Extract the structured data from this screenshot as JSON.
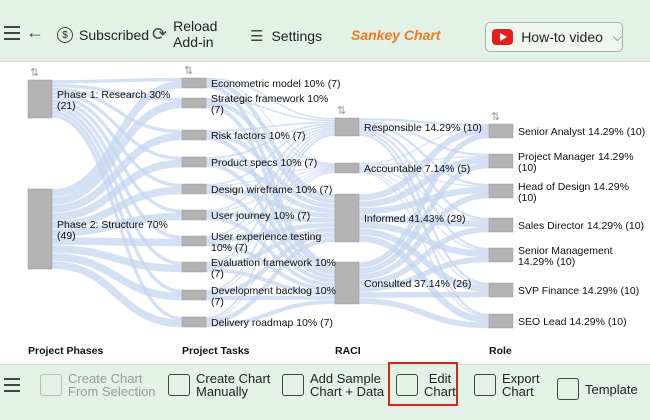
{
  "toolbar": {
    "subscribed_label": "Subscribed",
    "reload_label_1": "Reload",
    "reload_label_2": "Add-in",
    "settings_label": "Settings",
    "chart_title": "Sankey Chart",
    "howto_label": "How-to video"
  },
  "bottom_toolbar": {
    "create_selection_1": "Create Chart",
    "create_selection_2": "From Selection",
    "create_manual_1": "Create Chart",
    "create_manual_2": "Manually",
    "add_sample_1": "Add Sample",
    "add_sample_2": "Chart + Data",
    "edit_1": "Edit",
    "edit_2": "Chart",
    "export_1": "Export",
    "export_2": "Chart",
    "template": "Template"
  },
  "colors": {
    "accent": "#f07a22",
    "toolbar_bg": "#e3f2e6",
    "node": "#b3b3b3",
    "link": "#c6d6ef",
    "highlight": "#d9261c"
  },
  "chart_data": {
    "type": "sankey",
    "columns": [
      "Project Phases",
      "Project Tasks",
      "RACI",
      "Role"
    ],
    "nodes": [
      {
        "column": 0,
        "label": "Phase 1: Research 30%",
        "label2": "(21)",
        "value": 21
      },
      {
        "column": 0,
        "label": "Phase 2: Structure 70%",
        "label2": "(49)",
        "value": 49
      },
      {
        "column": 1,
        "label": "Econometric model 10% (7)",
        "label2": "",
        "value": 7
      },
      {
        "column": 1,
        "label": "Strategic framework 10%",
        "label2": "(7)",
        "value": 7
      },
      {
        "column": 1,
        "label": "Risk factors 10% (7)",
        "label2": "",
        "value": 7
      },
      {
        "column": 1,
        "label": "Product specs 10% (7)",
        "label2": "",
        "value": 7
      },
      {
        "column": 1,
        "label": "Design wireframe 10% (7)",
        "label2": "",
        "value": 7
      },
      {
        "column": 1,
        "label": "User journey 10% (7)",
        "label2": "",
        "value": 7
      },
      {
        "column": 1,
        "label": "User experience testing",
        "label2": "10% (7)",
        "value": 7
      },
      {
        "column": 1,
        "label": "Evaluation framework 10%",
        "label2": "(7)",
        "value": 7
      },
      {
        "column": 1,
        "label": "Development backlog 10%",
        "label2": "(7)",
        "value": 7
      },
      {
        "column": 1,
        "label": "Delivery roadmap 10% (7)",
        "label2": "",
        "value": 7
      },
      {
        "column": 2,
        "label": "Responsible 14.29% (10)",
        "label2": "",
        "value": 10
      },
      {
        "column": 2,
        "label": "Accountable 7.14% (5)",
        "label2": "",
        "value": 5
      },
      {
        "column": 2,
        "label": "Informed 41.43% (29)",
        "label2": "",
        "value": 29
      },
      {
        "column": 2,
        "label": "Consulted 37.14% (26)",
        "label2": "",
        "value": 26
      },
      {
        "column": 3,
        "label": "Senior Analyst 14.29% (10)",
        "label2": "",
        "value": 10
      },
      {
        "column": 3,
        "label": "Project Manager 14.29%",
        "label2": "(10)",
        "value": 10
      },
      {
        "column": 3,
        "label": "Head of Design 14.29%",
        "label2": "(10)",
        "value": 10
      },
      {
        "column": 3,
        "label": "Sales Director 14.29% (10)",
        "label2": "",
        "value": 10
      },
      {
        "column": 3,
        "label": "Senior Management",
        "label2": "14.29% (10)",
        "value": 10
      },
      {
        "column": 3,
        "label": "SVP Finance 14.29% (10)",
        "label2": "",
        "value": 10
      },
      {
        "column": 3,
        "label": "SEO Lead 14.29% (10)",
        "label2": "",
        "value": 10
      }
    ]
  }
}
